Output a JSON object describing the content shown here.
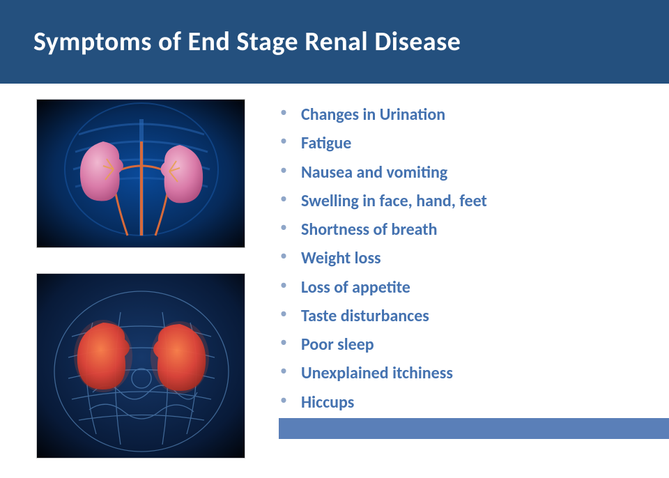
{
  "title": "Symptoms of End Stage Renal Disease",
  "colors": {
    "title_bar_bg": "#24507e",
    "title_text": "#ffffff",
    "list_text": "#4472b0",
    "bullet": "#8fa6c8",
    "footer_bar": "#5a7fb8",
    "img_bg_dark": "#02040a",
    "img_glow": "#0a4a9a",
    "kidney_pink": "#d97aa8",
    "kidney_highlight": "#f0b8d0",
    "vessel": "#d86a3a",
    "kidney_red": "#d9403a",
    "xray_line": "#6aa0d8"
  },
  "symptoms": [
    "Changes in Urination",
    "Fatigue",
    "Nausea and vomiting",
    "Swelling in face, hand, feet",
    "Shortness of breath",
    "Weight loss",
    "Loss of appetite",
    "Taste disturbances",
    "Poor sleep",
    "Unexplained itchiness",
    "Hiccups"
  ],
  "images": [
    {
      "alt": "3D render of kidneys inside torso, blue glow, pink kidneys"
    },
    {
      "alt": "X-ray style transparent abdomen, orange-red inflamed kidneys"
    }
  ]
}
